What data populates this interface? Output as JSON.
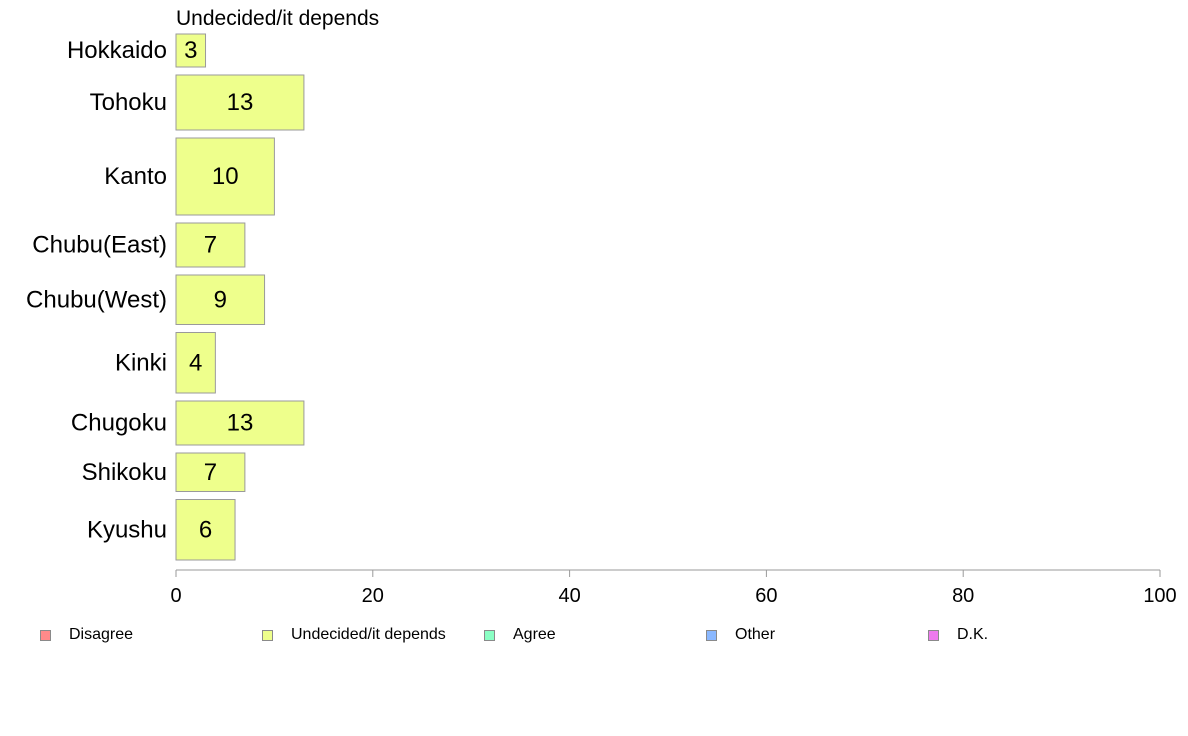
{
  "chart_data": {
    "type": "bar",
    "orientation": "horizontal",
    "title": "Undecided/it depends",
    "categories": [
      "Hokkaido",
      "Tohoku",
      "Kanto",
      "Chubu(East)",
      "Chubu(West)",
      "Kinki",
      "Chugoku",
      "Shikoku",
      "Kyushu"
    ],
    "series": [
      {
        "name": "Undecided/it depends",
        "values": [
          3,
          13,
          10,
          7,
          9,
          4,
          13,
          7,
          6
        ],
        "color": "#eeff8c"
      }
    ],
    "category_weights": [
      0.6,
      1.0,
      1.4,
      0.8,
      0.9,
      1.1,
      0.8,
      0.7,
      1.1
    ],
    "xlim": [
      0,
      100
    ],
    "xticks": [
      "0",
      "20",
      "40",
      "60",
      "80",
      "100"
    ],
    "grid": false,
    "legend_position": "bottom",
    "legend": [
      {
        "label": "Disagree",
        "color": "#ff8a8a"
      },
      {
        "label": "Undecided/it depends",
        "color": "#eeff8c"
      },
      {
        "label": "Agree",
        "color": "#8affc4"
      },
      {
        "label": "Other",
        "color": "#8ab8ff"
      },
      {
        "label": "D.K.",
        "color": "#ee7aee"
      }
    ]
  }
}
